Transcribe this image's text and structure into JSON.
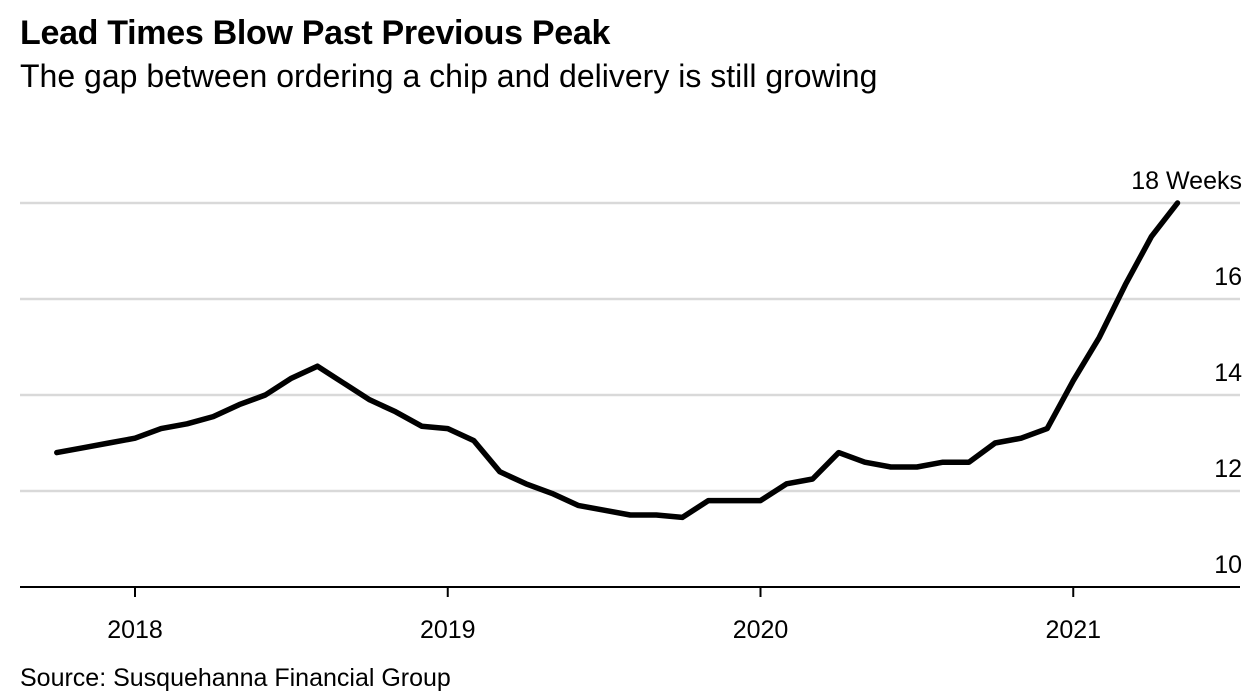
{
  "title": "Lead Times Blow Past Previous Peak",
  "subtitle": "The gap between ordering a chip and delivery is still growing",
  "source": "Source: Susquehanna Financial Group",
  "chart_data": {
    "type": "line",
    "title": "Lead Times Blow Past Previous Peak",
    "subtitle": "The gap between ordering a chip and delivery is still growing",
    "ylabel": "",
    "xlabel": "",
    "ylim": [
      10,
      18
    ],
    "yticks": [
      10,
      12,
      14,
      16,
      18
    ],
    "ytick_labels": [
      "10",
      "12",
      "14",
      "16",
      "18 Weeks"
    ],
    "xticks": [
      "2018-01",
      "2019-01",
      "2020-01",
      "2021-01"
    ],
    "xtick_labels": [
      "2018",
      "2019",
      "2020",
      "2021"
    ],
    "xlim": [
      "2017-10",
      "2021-06"
    ],
    "grid": true,
    "line_color": "#000000",
    "grid_color": "#d9d9d9",
    "series": [
      {
        "x": [
          "2017-10",
          "2017-11",
          "2017-12",
          "2018-01",
          "2018-02",
          "2018-03",
          "2018-04",
          "2018-05",
          "2018-06",
          "2018-07",
          "2018-08",
          "2018-09",
          "2018-10",
          "2018-11",
          "2018-12",
          "2019-01",
          "2019-02",
          "2019-03",
          "2019-04",
          "2019-05",
          "2019-06",
          "2019-07",
          "2019-08",
          "2019-09",
          "2019-10",
          "2019-11",
          "2019-12",
          "2020-01",
          "2020-02",
          "2020-03",
          "2020-04",
          "2020-05",
          "2020-06",
          "2020-07",
          "2020-08",
          "2020-09",
          "2020-10",
          "2020-11",
          "2020-12",
          "2021-01",
          "2021-02",
          "2021-03",
          "2021-04",
          "2021-05"
        ],
        "values": [
          12.8,
          12.9,
          13.0,
          13.1,
          13.3,
          13.4,
          13.55,
          13.8,
          14.0,
          14.35,
          14.6,
          14.25,
          13.9,
          13.65,
          13.35,
          13.3,
          13.05,
          12.4,
          12.15,
          11.95,
          11.7,
          11.6,
          11.5,
          11.5,
          11.45,
          11.8,
          11.8,
          11.8,
          12.15,
          12.25,
          12.8,
          12.6,
          12.5,
          12.5,
          12.6,
          12.6,
          13.0,
          13.1,
          13.3,
          14.3,
          15.2,
          16.3,
          17.3,
          18.0
        ]
      }
    ]
  }
}
